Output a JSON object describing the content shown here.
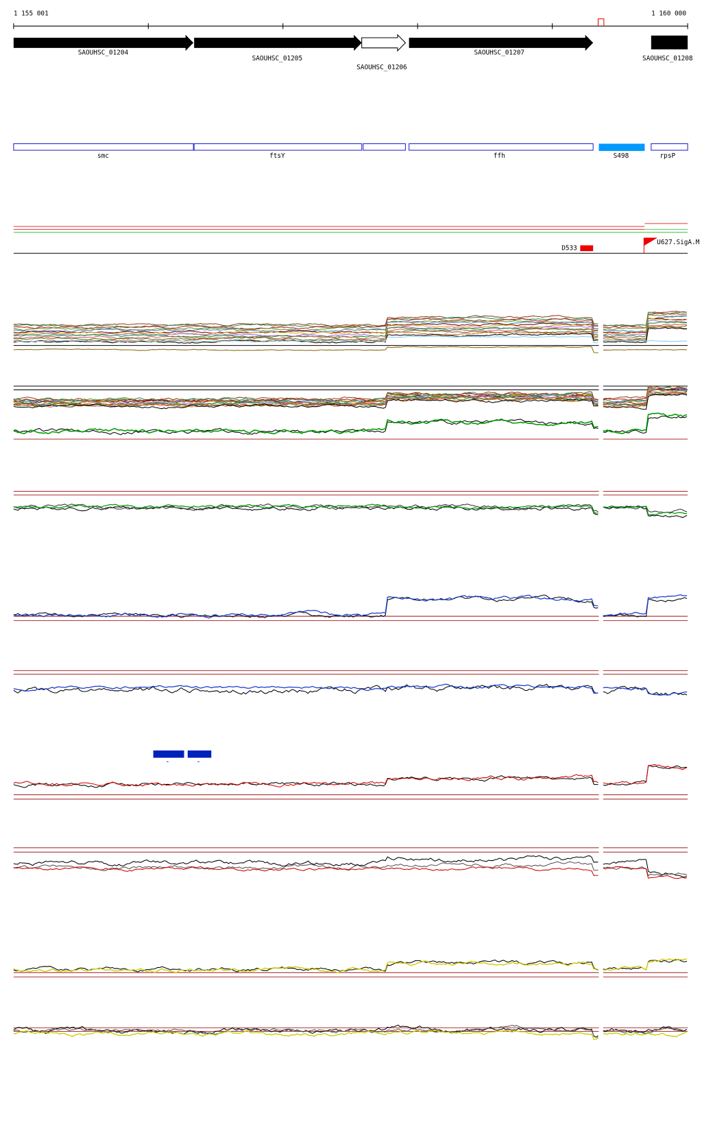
{
  "ruler": {
    "start": "1 155 001",
    "end": "1 160 000"
  },
  "genes": [
    {
      "label": "SAOUHSC_01204"
    },
    {
      "label": "SAOUHSC_01205"
    },
    {
      "label": "SAOUHSC_01206"
    },
    {
      "label": "SAOUHSC_01207"
    },
    {
      "label": "SAOUHSC_01208"
    }
  ],
  "features": [
    {
      "label": "smc"
    },
    {
      "label": "ftsY"
    },
    {
      "label": "ffh"
    },
    {
      "label": "S498"
    },
    {
      "label": "rpsP"
    }
  ],
  "markers": [
    {
      "label": "D533"
    },
    {
      "label": "U627.SigA.M"
    }
  ],
  "blocks": [
    {
      "label": "-"
    },
    {
      "label": "-"
    }
  ]
}
